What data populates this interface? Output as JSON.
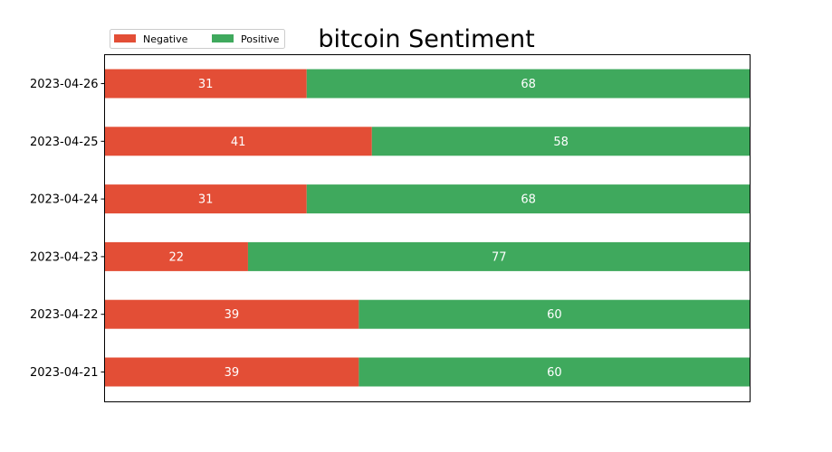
{
  "chart_data": {
    "type": "bar",
    "orientation": "horizontal",
    "stacked": true,
    "title": "bitcoin Sentiment",
    "categories": [
      "2023-04-21",
      "2023-04-22",
      "2023-04-23",
      "2023-04-24",
      "2023-04-25",
      "2023-04-26"
    ],
    "series": [
      {
        "name": "Negative",
        "color": "#e34e36",
        "values": [
          39,
          39,
          22,
          31,
          41,
          31
        ]
      },
      {
        "name": "Positive",
        "color": "#3fa95d",
        "values": [
          60,
          60,
          77,
          68,
          58,
          68
        ]
      }
    ],
    "xlim": [
      0,
      99
    ],
    "x_ticks_shown": false,
    "grid": false,
    "legend": {
      "placement": "top-left",
      "entries": [
        "Negative",
        "Positive"
      ]
    }
  }
}
